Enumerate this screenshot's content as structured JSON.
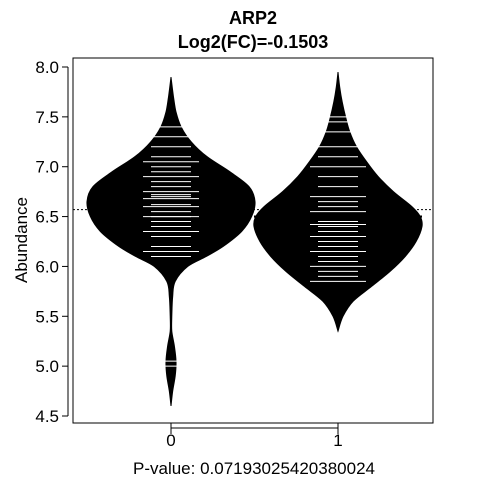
{
  "chart_data": {
    "type": "beanplot",
    "title": "ARP2",
    "subtitle": "Log2(FC)=-0.1503",
    "xlabel": "P-value: 0.07193025420380024",
    "ylabel": "Abundance",
    "categories": [
      "0",
      "1"
    ],
    "ylim": [
      4.45,
      8.1
    ],
    "yticks": [
      4.5,
      5.0,
      5.5,
      6.0,
      6.5,
      7.0,
      7.5,
      8.0
    ],
    "ytick_labels": [
      "4.5",
      "5.0",
      "5.5",
      "6.0",
      "6.5",
      "7.0",
      "7.5",
      "8.0"
    ],
    "overall_mean": 6.57,
    "group_means": [
      6.65,
      6.5
    ],
    "beans": [
      {
        "category": "0",
        "range": [
          4.6,
          7.9
        ],
        "density": [
          [
            4.6,
            0.0
          ],
          [
            4.75,
            0.02
          ],
          [
            4.9,
            0.05
          ],
          [
            5.05,
            0.06
          ],
          [
            5.2,
            0.04
          ],
          [
            5.35,
            0.01
          ],
          [
            5.5,
            0.01
          ],
          [
            5.7,
            0.02
          ],
          [
            5.85,
            0.05
          ],
          [
            6.0,
            0.2
          ],
          [
            6.1,
            0.42
          ],
          [
            6.2,
            0.62
          ],
          [
            6.35,
            0.84
          ],
          [
            6.5,
            0.96
          ],
          [
            6.65,
            1.0
          ],
          [
            6.8,
            0.93
          ],
          [
            6.95,
            0.7
          ],
          [
            7.1,
            0.43
          ],
          [
            7.25,
            0.24
          ],
          [
            7.4,
            0.12
          ],
          [
            7.55,
            0.06
          ],
          [
            7.7,
            0.03
          ],
          [
            7.9,
            0.0
          ]
        ],
        "points": [
          5.0,
          5.05,
          6.1,
          6.15,
          6.2,
          6.3,
          6.35,
          6.4,
          6.45,
          6.5,
          6.5,
          6.55,
          6.6,
          6.62,
          6.65,
          6.68,
          6.7,
          6.72,
          6.75,
          6.8,
          6.85,
          6.9,
          6.95,
          7.0,
          7.05,
          7.1,
          7.2,
          7.3,
          7.4
        ]
      },
      {
        "category": "1",
        "range": [
          5.35,
          7.95
        ],
        "density": [
          [
            5.35,
            0.0
          ],
          [
            5.5,
            0.06
          ],
          [
            5.65,
            0.18
          ],
          [
            5.8,
            0.4
          ],
          [
            5.95,
            0.62
          ],
          [
            6.1,
            0.8
          ],
          [
            6.25,
            0.93
          ],
          [
            6.4,
            1.0
          ],
          [
            6.5,
            0.98
          ],
          [
            6.6,
            0.88
          ],
          [
            6.75,
            0.66
          ],
          [
            6.9,
            0.48
          ],
          [
            7.05,
            0.34
          ],
          [
            7.2,
            0.22
          ],
          [
            7.35,
            0.14
          ],
          [
            7.5,
            0.09
          ],
          [
            7.65,
            0.05
          ],
          [
            7.8,
            0.02
          ],
          [
            7.95,
            0.0
          ]
        ],
        "points": [
          5.85,
          5.9,
          5.95,
          6.0,
          6.05,
          6.1,
          6.15,
          6.2,
          6.25,
          6.3,
          6.35,
          6.4,
          6.42,
          6.45,
          6.5,
          6.55,
          6.6,
          6.65,
          6.7,
          6.8,
          6.9,
          7.0,
          7.1,
          7.2,
          7.35,
          7.45,
          7.5
        ]
      }
    ],
    "colors": {
      "bean": "#000000",
      "point_lines": "#ffffff",
      "background": "#ffffff"
    }
  }
}
